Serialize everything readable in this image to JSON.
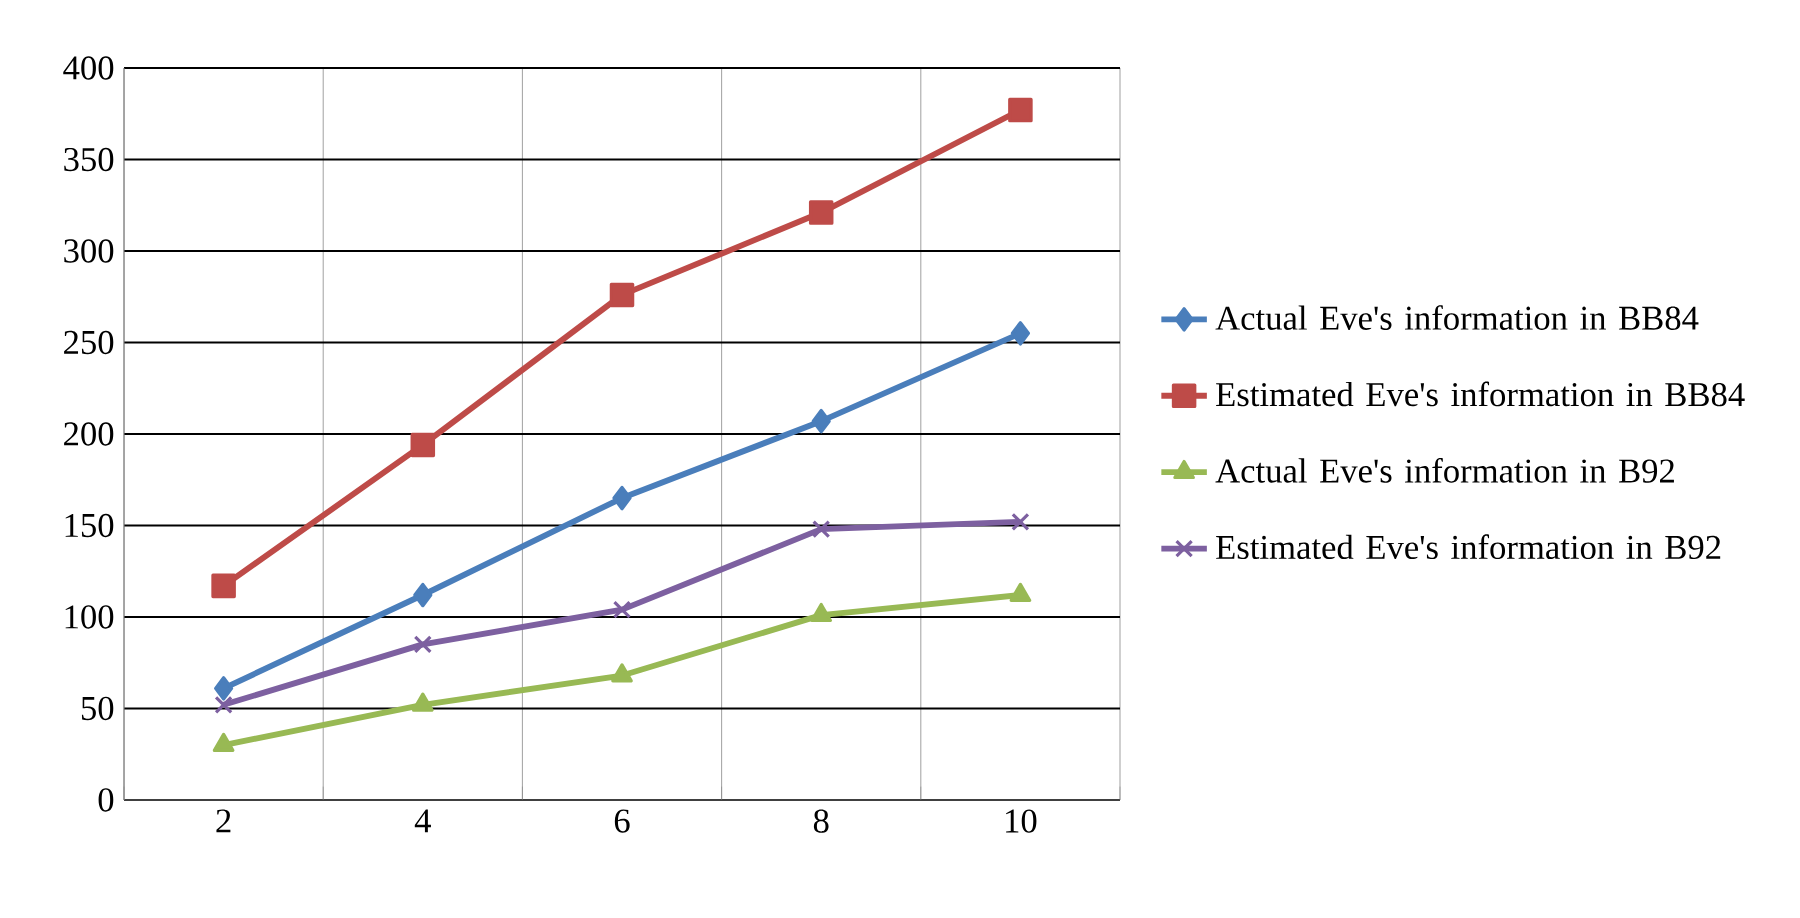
{
  "chart_data": {
    "type": "line",
    "categories": [
      "2",
      "4",
      "6",
      "8",
      "10"
    ],
    "ylim": [
      0,
      400
    ],
    "yticks": [
      0,
      50,
      100,
      150,
      200,
      250,
      300,
      350,
      400
    ],
    "grid": true,
    "legend": "right",
    "series": [
      {
        "name": "Actual Eve's information in BB84",
        "color": "#4a7ebb",
        "marker": "diamond",
        "values": [
          61,
          112,
          165,
          207,
          255
        ]
      },
      {
        "name": "Estimated Eve's information in BB84",
        "color": "#be4b48",
        "marker": "square",
        "values": [
          117,
          194,
          276,
          321,
          377
        ]
      },
      {
        "name": "Actual Eve's information in B92",
        "color": "#98b954",
        "marker": "triangle",
        "values": [
          30,
          52,
          68,
          101,
          112
        ]
      },
      {
        "name": "Estimated Eve's information in B92",
        "color": "#7d60a0",
        "marker": "cross",
        "values": [
          52,
          85,
          104,
          148,
          152
        ]
      }
    ]
  }
}
